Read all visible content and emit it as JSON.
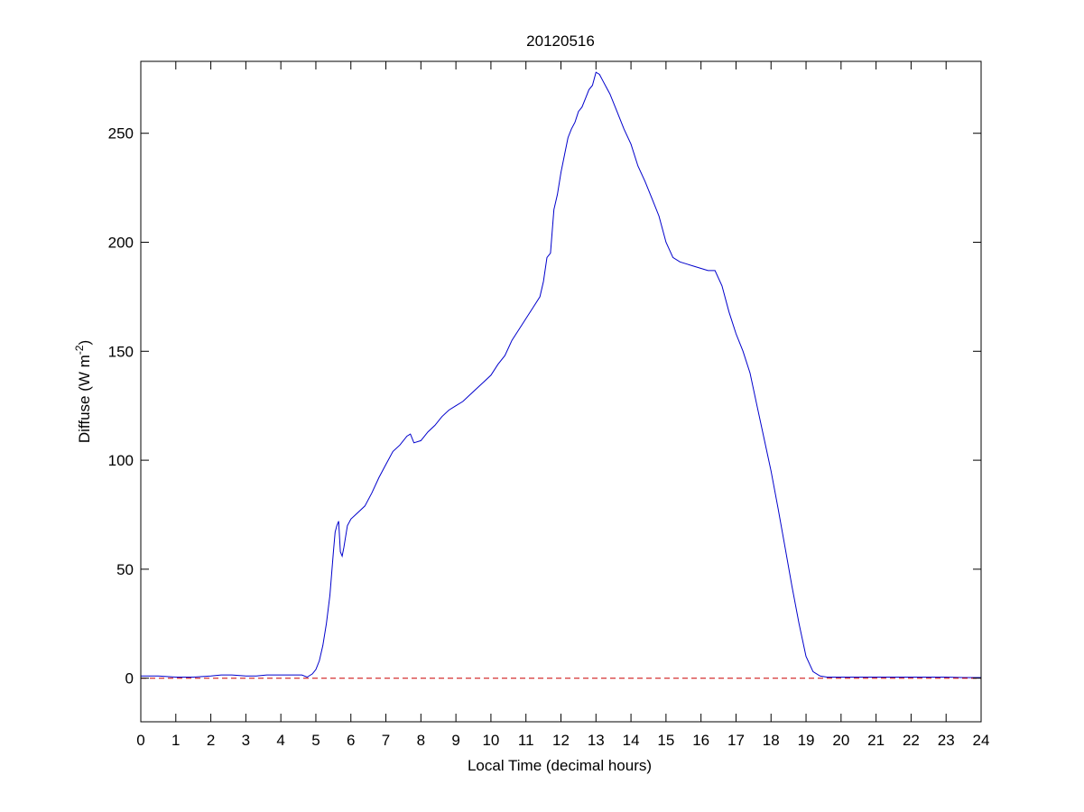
{
  "chart_data": {
    "type": "line",
    "title": "20120516",
    "xlabel": "Local Time (decimal hours)",
    "ylabel": "Diffuse (W m",
    "ylabel_superscript": "-2",
    "ylabel_suffix": ")",
    "xlim": [
      0,
      24
    ],
    "ylim": [
      -20,
      283
    ],
    "xticks": [
      0,
      1,
      2,
      3,
      4,
      5,
      6,
      7,
      8,
      9,
      10,
      11,
      12,
      13,
      14,
      15,
      16,
      17,
      18,
      19,
      20,
      21,
      22,
      23,
      24
    ],
    "yticks": [
      0,
      50,
      100,
      150,
      200,
      250
    ],
    "grid": false,
    "legend": "none",
    "series": [
      {
        "color": "#0000cc",
        "style": "solid",
        "x": [
          0,
          0.5,
          1,
          1.5,
          2,
          2.3,
          2.6,
          3,
          3.3,
          3.6,
          4,
          4.3,
          4.6,
          4.75,
          4.9,
          5.0,
          5.1,
          5.2,
          5.3,
          5.4,
          5.5,
          5.55,
          5.6,
          5.65,
          5.7,
          5.75,
          5.8,
          5.9,
          6.0,
          6.2,
          6.4,
          6.6,
          6.8,
          7.0,
          7.2,
          7.4,
          7.6,
          7.7,
          7.8,
          8.0,
          8.2,
          8.4,
          8.6,
          8.8,
          9.0,
          9.2,
          9.4,
          9.6,
          9.8,
          10.0,
          10.2,
          10.4,
          10.6,
          10.8,
          11.0,
          11.2,
          11.4,
          11.5,
          11.6,
          11.7,
          11.8,
          11.9,
          12.0,
          12.1,
          12.2,
          12.3,
          12.4,
          12.5,
          12.6,
          12.7,
          12.8,
          12.9,
          13.0,
          13.1,
          13.2,
          13.3,
          13.4,
          13.6,
          13.8,
          14.0,
          14.2,
          14.4,
          14.6,
          14.8,
          15.0,
          15.2,
          15.4,
          15.6,
          15.8,
          16.0,
          16.2,
          16.4,
          16.6,
          16.8,
          17.0,
          17.2,
          17.4,
          17.6,
          17.8,
          18.0,
          18.2,
          18.4,
          18.6,
          18.8,
          19.0,
          19.2,
          19.4,
          19.6,
          19.8,
          20.0,
          20.5,
          21,
          21.5,
          22,
          22.5,
          23,
          23.5,
          24
        ],
        "y": [
          1,
          1,
          0.5,
          0.5,
          1,
          1.5,
          1.5,
          1,
          1,
          1.5,
          1.5,
          1.5,
          1.5,
          0.5,
          2,
          4,
          8,
          15,
          25,
          38,
          58,
          67,
          70,
          72,
          58,
          56,
          60,
          70,
          73,
          76,
          79,
          85,
          92,
          98,
          104,
          107,
          111,
          112,
          108,
          109,
          113,
          116,
          120,
          123,
          125,
          127,
          130,
          133,
          136,
          139,
          144,
          148,
          155,
          160,
          165,
          170,
          175,
          182,
          193,
          195,
          215,
          222,
          232,
          240,
          248,
          252,
          255,
          260,
          262,
          266,
          270,
          272,
          278,
          277,
          274,
          271,
          268,
          260,
          252,
          245,
          235,
          228,
          220,
          212,
          200,
          193,
          191,
          190,
          189,
          188,
          187,
          187,
          180,
          168,
          158,
          150,
          140,
          125,
          110,
          95,
          78,
          60,
          42,
          25,
          10,
          3,
          1,
          0.5,
          0.5,
          0.5,
          0.5,
          0.5,
          0.5,
          0.5,
          0.5,
          0.5,
          0.3,
          0.3
        ]
      },
      {
        "color": "#cc0000",
        "style": "dashed",
        "x": [
          0,
          24
        ],
        "y": [
          0,
          0
        ]
      }
    ]
  }
}
